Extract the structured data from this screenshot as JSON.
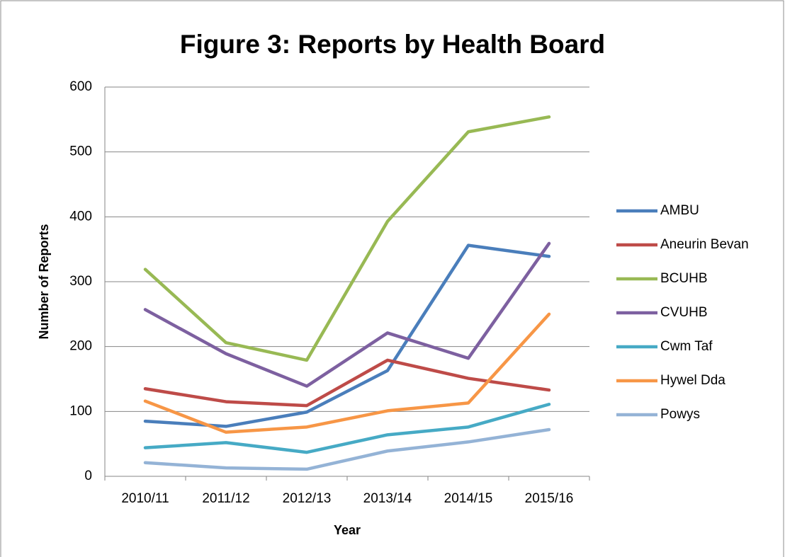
{
  "chart_data": {
    "type": "line",
    "title": "Figure 3: Reports by Health Board",
    "x_label": "Year",
    "y_label": "Number of Reports",
    "categories": [
      "2010/11",
      "2011/12",
      "2012/13",
      "2013/14",
      "2014/15",
      "2015/16"
    ],
    "series": [
      {
        "name": "AMBU",
        "color": "#4a7ebb",
        "values": [
          85,
          77,
          99,
          163,
          356,
          339
        ]
      },
      {
        "name": "Aneurin Bevan",
        "color": "#be4b48",
        "values": [
          135,
          115,
          109,
          179,
          151,
          133
        ]
      },
      {
        "name": "BCUHB",
        "color": "#98b954",
        "values": [
          319,
          206,
          179,
          393,
          531,
          554
        ]
      },
      {
        "name": "CVUHB",
        "color": "#7d60a0",
        "values": [
          257,
          189,
          139,
          221,
          182,
          359
        ]
      },
      {
        "name": "Cwm Taf",
        "color": "#46aac5",
        "values": [
          44,
          52,
          37,
          64,
          76,
          111
        ]
      },
      {
        "name": "Hywel Dda",
        "color": "#f79646",
        "values": [
          116,
          68,
          76,
          101,
          113,
          250
        ]
      },
      {
        "name": "Powys",
        "color": "#94b3d6",
        "values": [
          21,
          13,
          11,
          39,
          53,
          72
        ]
      }
    ],
    "ylim": [
      0,
      600
    ],
    "yticks": [
      0,
      100,
      200,
      300,
      400,
      500,
      600
    ],
    "grid": true,
    "legend": "right"
  }
}
